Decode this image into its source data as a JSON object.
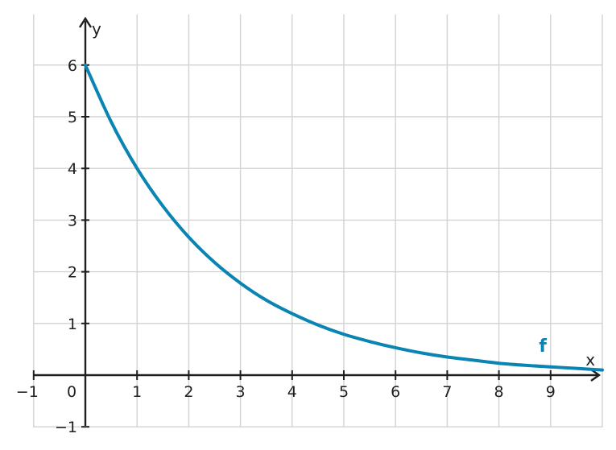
{
  "chart_data": {
    "type": "line",
    "title": "",
    "xlabel": "x",
    "ylabel": "y",
    "xlim": [
      -1,
      10
    ],
    "ylim": [
      -1,
      7
    ],
    "x_ticks": [
      -1,
      0,
      1,
      2,
      3,
      4,
      5,
      6,
      7,
      8,
      9
    ],
    "x_tick_labels": [
      "−1",
      "0",
      "1",
      "2",
      "3",
      "4",
      "5",
      "6",
      "7",
      "8",
      "9"
    ],
    "y_ticks": [
      -1,
      1,
      2,
      3,
      4,
      5,
      6
    ],
    "y_tick_labels": [
      "−1",
      "1",
      "2",
      "3",
      "4",
      "5",
      "6"
    ],
    "grid": true,
    "series": [
      {
        "name": "f",
        "color": "#0a85b3",
        "x": [
          0,
          0.5,
          1,
          1.5,
          2,
          2.5,
          3,
          3.5,
          4,
          4.5,
          5,
          5.5,
          6,
          6.5,
          7,
          7.5,
          8,
          8.5,
          9,
          9.5,
          10
        ],
        "y": [
          6,
          4.9,
          4,
          3.27,
          2.67,
          2.18,
          1.78,
          1.45,
          1.19,
          0.97,
          0.79,
          0.65,
          0.53,
          0.43,
          0.35,
          0.29,
          0.23,
          0.19,
          0.16,
          0.13,
          0.1
        ]
      }
    ]
  }
}
